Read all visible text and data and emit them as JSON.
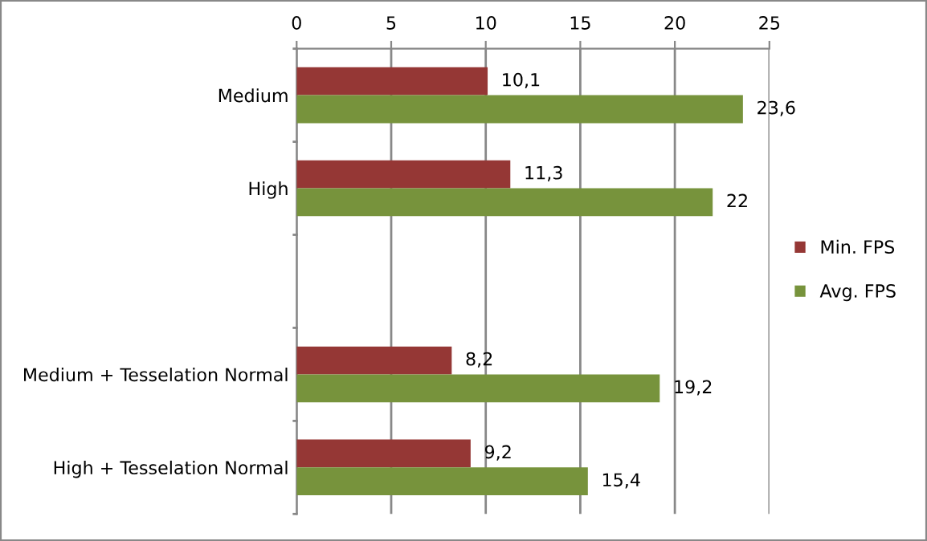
{
  "chart_data": {
    "type": "bar",
    "orientation": "horizontal",
    "categories": [
      "Medium",
      "High",
      null,
      "Medium + Tesselation Normal",
      "High + Tesselation Normal"
    ],
    "series": [
      {
        "name": "Min. FPS",
        "color": "#953735",
        "values": [
          10.1,
          11.3,
          null,
          8.2,
          9.2
        ],
        "value_labels": [
          "10,1",
          "11,3",
          null,
          "8,2",
          "9,2"
        ]
      },
      {
        "name": "Avg. FPS",
        "color": "#77933c",
        "values": [
          23.6,
          22,
          null,
          19.2,
          15.4
        ],
        "value_labels": [
          "23,6",
          "22",
          null,
          "19,2",
          "15,4"
        ]
      }
    ],
    "xlim": [
      0,
      25
    ],
    "xticks": [
      0,
      5,
      10,
      15,
      20,
      25
    ],
    "grid": "x",
    "legend": "right"
  }
}
